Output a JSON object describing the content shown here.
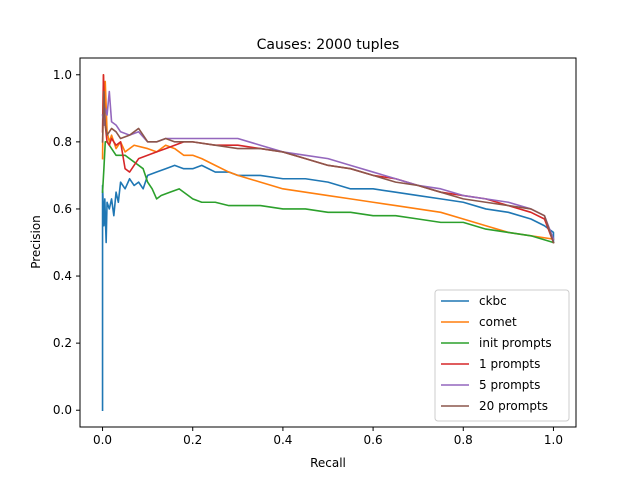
{
  "chart_data": {
    "type": "line",
    "title": "Causes: 2000 tuples",
    "xlabel": "Recall",
    "ylabel": "Precision",
    "xlim": [
      -0.05,
      1.05
    ],
    "ylim": [
      -0.05,
      1.05
    ],
    "xticks": [
      0.0,
      0.2,
      0.4,
      0.6,
      0.8,
      1.0
    ],
    "yticks": [
      0.0,
      0.2,
      0.4,
      0.6,
      0.8,
      1.0
    ],
    "xtick_labels": [
      "0.0",
      "0.2",
      "0.4",
      "0.6",
      "0.8",
      "1.0"
    ],
    "ytick_labels": [
      "0.0",
      "0.2",
      "0.4",
      "0.6",
      "0.8",
      "1.0"
    ],
    "grid": false,
    "legend_position": "lower-right",
    "series": [
      {
        "name": "ckbc",
        "color": "#1f77b4",
        "points": [
          [
            0,
            0
          ],
          [
            0,
            0.67
          ],
          [
            0.003,
            0.55
          ],
          [
            0.005,
            0.63
          ],
          [
            0.008,
            0.5
          ],
          [
            0.01,
            0.62
          ],
          [
            0.015,
            0.6
          ],
          [
            0.02,
            0.63
          ],
          [
            0.025,
            0.58
          ],
          [
            0.03,
            0.65
          ],
          [
            0.035,
            0.62
          ],
          [
            0.04,
            0.68
          ],
          [
            0.05,
            0.66
          ],
          [
            0.06,
            0.69
          ],
          [
            0.07,
            0.67
          ],
          [
            0.08,
            0.68
          ],
          [
            0.09,
            0.66
          ],
          [
            0.1,
            0.7
          ],
          [
            0.12,
            0.71
          ],
          [
            0.14,
            0.72
          ],
          [
            0.16,
            0.73
          ],
          [
            0.18,
            0.72
          ],
          [
            0.2,
            0.72
          ],
          [
            0.22,
            0.73
          ],
          [
            0.25,
            0.71
          ],
          [
            0.28,
            0.71
          ],
          [
            0.3,
            0.7
          ],
          [
            0.35,
            0.7
          ],
          [
            0.4,
            0.69
          ],
          [
            0.45,
            0.69
          ],
          [
            0.5,
            0.68
          ],
          [
            0.55,
            0.66
          ],
          [
            0.6,
            0.66
          ],
          [
            0.65,
            0.65
          ],
          [
            0.7,
            0.64
          ],
          [
            0.75,
            0.63
          ],
          [
            0.8,
            0.62
          ],
          [
            0.85,
            0.6
          ],
          [
            0.9,
            0.59
          ],
          [
            0.95,
            0.57
          ],
          [
            0.98,
            0.55
          ],
          [
            1.0,
            0.53
          ],
          [
            1.0,
            0.5
          ]
        ]
      },
      {
        "name": "comet",
        "color": "#ff7f0e",
        "points": [
          [
            0,
            0.75
          ],
          [
            0.002,
            1.0
          ],
          [
            0.004,
            0.85
          ],
          [
            0.006,
            0.98
          ],
          [
            0.01,
            0.83
          ],
          [
            0.015,
            0.8
          ],
          [
            0.02,
            0.82
          ],
          [
            0.03,
            0.78
          ],
          [
            0.04,
            0.8
          ],
          [
            0.05,
            0.77
          ],
          [
            0.07,
            0.79
          ],
          [
            0.1,
            0.78
          ],
          [
            0.12,
            0.77
          ],
          [
            0.14,
            0.79
          ],
          [
            0.16,
            0.78
          ],
          [
            0.18,
            0.76
          ],
          [
            0.2,
            0.76
          ],
          [
            0.22,
            0.75
          ],
          [
            0.25,
            0.73
          ],
          [
            0.28,
            0.71
          ],
          [
            0.3,
            0.7
          ],
          [
            0.35,
            0.68
          ],
          [
            0.4,
            0.66
          ],
          [
            0.45,
            0.65
          ],
          [
            0.5,
            0.64
          ],
          [
            0.55,
            0.63
          ],
          [
            0.6,
            0.62
          ],
          [
            0.65,
            0.61
          ],
          [
            0.7,
            0.6
          ],
          [
            0.75,
            0.59
          ],
          [
            0.8,
            0.57
          ],
          [
            0.85,
            0.55
          ],
          [
            0.9,
            0.53
          ],
          [
            0.95,
            0.52
          ],
          [
            1.0,
            0.51
          ]
        ]
      },
      {
        "name": "init prompts",
        "color": "#2ca02c",
        "points": [
          [
            0,
            0.65
          ],
          [
            0.003,
            0.72
          ],
          [
            0.006,
            0.8
          ],
          [
            0.01,
            0.8
          ],
          [
            0.02,
            0.78
          ],
          [
            0.03,
            0.76
          ],
          [
            0.05,
            0.76
          ],
          [
            0.07,
            0.74
          ],
          [
            0.09,
            0.72
          ],
          [
            0.1,
            0.68
          ],
          [
            0.11,
            0.66
          ],
          [
            0.12,
            0.63
          ],
          [
            0.13,
            0.64
          ],
          [
            0.15,
            0.65
          ],
          [
            0.17,
            0.66
          ],
          [
            0.19,
            0.64
          ],
          [
            0.2,
            0.63
          ],
          [
            0.22,
            0.62
          ],
          [
            0.25,
            0.62
          ],
          [
            0.28,
            0.61
          ],
          [
            0.3,
            0.61
          ],
          [
            0.35,
            0.61
          ],
          [
            0.4,
            0.6
          ],
          [
            0.45,
            0.6
          ],
          [
            0.5,
            0.59
          ],
          [
            0.55,
            0.59
          ],
          [
            0.6,
            0.58
          ],
          [
            0.65,
            0.58
          ],
          [
            0.7,
            0.57
          ],
          [
            0.75,
            0.56
          ],
          [
            0.8,
            0.56
          ],
          [
            0.85,
            0.54
          ],
          [
            0.9,
            0.53
          ],
          [
            0.95,
            0.52
          ],
          [
            1.0,
            0.5
          ]
        ]
      },
      {
        "name": "1 prompts",
        "color": "#d62728",
        "points": [
          [
            0,
            0.83
          ],
          [
            0.002,
            1.0
          ],
          [
            0.004,
            0.9
          ],
          [
            0.006,
            0.85
          ],
          [
            0.01,
            0.8
          ],
          [
            0.015,
            0.79
          ],
          [
            0.02,
            0.81
          ],
          [
            0.03,
            0.79
          ],
          [
            0.04,
            0.8
          ],
          [
            0.05,
            0.72
          ],
          [
            0.06,
            0.71
          ],
          [
            0.07,
            0.73
          ],
          [
            0.08,
            0.75
          ],
          [
            0.1,
            0.76
          ],
          [
            0.12,
            0.77
          ],
          [
            0.14,
            0.78
          ],
          [
            0.16,
            0.79
          ],
          [
            0.18,
            0.8
          ],
          [
            0.2,
            0.8
          ],
          [
            0.25,
            0.79
          ],
          [
            0.3,
            0.79
          ],
          [
            0.35,
            0.78
          ],
          [
            0.4,
            0.77
          ],
          [
            0.45,
            0.75
          ],
          [
            0.5,
            0.73
          ],
          [
            0.55,
            0.72
          ],
          [
            0.6,
            0.7
          ],
          [
            0.65,
            0.69
          ],
          [
            0.7,
            0.67
          ],
          [
            0.75,
            0.65
          ],
          [
            0.8,
            0.64
          ],
          [
            0.85,
            0.63
          ],
          [
            0.9,
            0.61
          ],
          [
            0.95,
            0.59
          ],
          [
            0.98,
            0.57
          ],
          [
            1.0,
            0.5
          ]
        ]
      },
      {
        "name": "5 prompts",
        "color": "#9467bd",
        "points": [
          [
            0,
            0.88
          ],
          [
            0.003,
            0.85
          ],
          [
            0.006,
            0.9
          ],
          [
            0.01,
            0.88
          ],
          [
            0.015,
            0.95
          ],
          [
            0.02,
            0.86
          ],
          [
            0.03,
            0.85
          ],
          [
            0.04,
            0.83
          ],
          [
            0.06,
            0.82
          ],
          [
            0.08,
            0.83
          ],
          [
            0.1,
            0.8
          ],
          [
            0.12,
            0.8
          ],
          [
            0.14,
            0.81
          ],
          [
            0.16,
            0.81
          ],
          [
            0.18,
            0.81
          ],
          [
            0.2,
            0.81
          ],
          [
            0.25,
            0.81
          ],
          [
            0.3,
            0.81
          ],
          [
            0.35,
            0.79
          ],
          [
            0.4,
            0.77
          ],
          [
            0.45,
            0.76
          ],
          [
            0.5,
            0.75
          ],
          [
            0.55,
            0.73
          ],
          [
            0.6,
            0.71
          ],
          [
            0.65,
            0.69
          ],
          [
            0.7,
            0.67
          ],
          [
            0.75,
            0.66
          ],
          [
            0.8,
            0.64
          ],
          [
            0.85,
            0.63
          ],
          [
            0.9,
            0.62
          ],
          [
            0.95,
            0.6
          ],
          [
            0.98,
            0.58
          ],
          [
            1.0,
            0.51
          ]
        ]
      },
      {
        "name": "20 prompts",
        "color": "#8c564b",
        "points": [
          [
            0,
            0.8
          ],
          [
            0.003,
            0.95
          ],
          [
            0.006,
            0.85
          ],
          [
            0.01,
            0.82
          ],
          [
            0.02,
            0.84
          ],
          [
            0.03,
            0.83
          ],
          [
            0.04,
            0.81
          ],
          [
            0.06,
            0.82
          ],
          [
            0.08,
            0.84
          ],
          [
            0.1,
            0.8
          ],
          [
            0.12,
            0.8
          ],
          [
            0.14,
            0.81
          ],
          [
            0.16,
            0.8
          ],
          [
            0.18,
            0.8
          ],
          [
            0.2,
            0.8
          ],
          [
            0.25,
            0.79
          ],
          [
            0.3,
            0.78
          ],
          [
            0.35,
            0.78
          ],
          [
            0.4,
            0.77
          ],
          [
            0.45,
            0.75
          ],
          [
            0.5,
            0.73
          ],
          [
            0.55,
            0.72
          ],
          [
            0.6,
            0.7
          ],
          [
            0.65,
            0.68
          ],
          [
            0.7,
            0.67
          ],
          [
            0.75,
            0.65
          ],
          [
            0.8,
            0.63
          ],
          [
            0.85,
            0.62
          ],
          [
            0.9,
            0.61
          ],
          [
            0.95,
            0.6
          ],
          [
            0.98,
            0.58
          ],
          [
            1.0,
            0.5
          ]
        ]
      }
    ]
  }
}
